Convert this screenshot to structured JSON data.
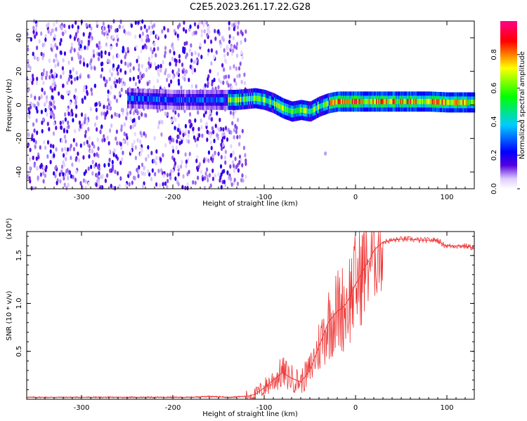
{
  "title": "C2E5.2023.261.17.22.G28",
  "chart_data": [
    {
      "type": "heatmap",
      "xlabel": "Height of straight line (km)",
      "ylabel": "Frequency (Hz)",
      "xlim": [
        -360,
        130
      ],
      "ylim": [
        -50,
        50
      ],
      "x_ticks": [
        -300,
        -200,
        -100,
        0,
        100
      ],
      "y_ticks": [
        -40,
        -20,
        0,
        20,
        40
      ],
      "colorbar": {
        "label": "Normalized spectral amplitude",
        "range": [
          0,
          1
        ],
        "ticks": [
          "0.0",
          "0.2",
          "0.4",
          "0.6",
          "0.8"
        ],
        "colormap": [
          "#ffffff",
          "#5500dd",
          "#0000ff",
          "#00ccff",
          "#00ff00",
          "#ffff00",
          "#ff0000",
          "#ff0088"
        ]
      },
      "ridge": {
        "x": [
          -250,
          -200,
          -150,
          -130,
          -110,
          -100,
          -90,
          -80,
          -70,
          -60,
          -50,
          -40,
          -30,
          -20,
          -10,
          0,
          20,
          50,
          80,
          100,
          120,
          130
        ],
        "y": [
          4,
          3,
          3,
          3,
          4,
          3,
          1,
          -2,
          -4,
          -3,
          -4,
          -1,
          1,
          2,
          2,
          2,
          2,
          2,
          2,
          1.5,
          1.5,
          1.5
        ]
      },
      "noise_region_x": [
        -360,
        -120
      ]
    },
    {
      "type": "line",
      "xlabel": "Height of straight line (km)",
      "ylabel": "SNR (10 * v/v)",
      "y_multiplier": "(x10⁴)",
      "xlim": [
        -360,
        130
      ],
      "ylim": [
        0,
        1.75
      ],
      "x_ticks": [
        -300,
        -200,
        -100,
        0,
        100
      ],
      "y_ticks": [
        "0.5",
        "1.0",
        "1.5"
      ],
      "series": [
        {
          "color": "#ee3333",
          "x": [
            -360,
            -340,
            -320,
            -300,
            -280,
            -260,
            -240,
            -220,
            -200,
            -180,
            -160,
            -140,
            -120,
            -110,
            -100,
            -90,
            -80,
            -70,
            -60,
            -50,
            -40,
            -30,
            -20,
            -15,
            -10,
            -5,
            0,
            5,
            10,
            15,
            20,
            25,
            30,
            40,
            50,
            60,
            70,
            80,
            90,
            95,
            100,
            110,
            120,
            130
          ],
          "y": [
            0.02,
            0.02,
            0.02,
            0.02,
            0.02,
            0.02,
            0.02,
            0.02,
            0.02,
            0.02,
            0.03,
            0.02,
            0.03,
            0.05,
            0.12,
            0.2,
            0.28,
            0.22,
            0.18,
            0.3,
            0.55,
            0.8,
            0.92,
            0.95,
            1.0,
            1.1,
            1.2,
            1.28,
            1.38,
            1.45,
            1.55,
            1.6,
            1.64,
            1.66,
            1.67,
            1.67,
            1.66,
            1.66,
            1.66,
            1.62,
            1.6,
            1.6,
            1.6,
            1.58
          ]
        }
      ]
    }
  ]
}
